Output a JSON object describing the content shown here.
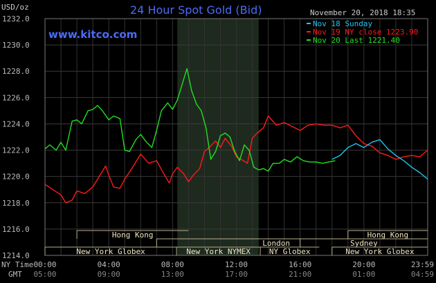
{
  "chart_data": {
    "type": "line",
    "title": "24 Hour Spot Gold (Bid)",
    "site": "www.kitco.com",
    "ylabel": "USD/oz",
    "date": "November 20, 2018 18:35",
    "ylim": [
      1214.0,
      1232.0
    ],
    "yticks": [
      "1232.0",
      "1230.0",
      "1228.0",
      "1226.0",
      "1224.0",
      "1222.0",
      "1220.0",
      "1218.0",
      "1216.0",
      "1214.0"
    ],
    "xlim": [
      0,
      24
    ],
    "x_row1_label": "NY Time",
    "x_row2_label": "GMT",
    "xticks_ny": [
      "00:00",
      "04:00",
      "08:00",
      "12:00",
      "16:00",
      "20:00",
      "23:59"
    ],
    "xticks_gmt": [
      "05:00",
      "09:00",
      "13:00",
      "17:00",
      "21:00",
      "01:00",
      "04:59"
    ],
    "grid": true,
    "legend_position": "top-right",
    "shaded_region_hours": [
      8.3,
      13.4
    ],
    "sessions": [
      {
        "label": "Hong Kong",
        "start": 2.0,
        "end": 9.0,
        "row": 1
      },
      {
        "label": "Hong Kong",
        "start": 19.0,
        "end": 24.0,
        "row": 1
      },
      {
        "label": "London",
        "start": 7.0,
        "end": 22.0,
        "row": 2
      },
      {
        "label": "Sydney",
        "start": 16.0,
        "end": 24.0,
        "row": 2
      },
      {
        "label": "New York Globex",
        "start": 0.0,
        "end": 8.25,
        "row": 3
      },
      {
        "label": "New York NYMEX",
        "start": 8.25,
        "end": 13.5,
        "row": 3
      },
      {
        "label": "NY Globex",
        "start": 13.5,
        "end": 17.2,
        "row": 3
      },
      {
        "label": "New York Globex",
        "start": 18.0,
        "end": 24.0,
        "row": 3
      }
    ],
    "series": [
      {
        "name": "Nov 18 Sunday",
        "color": "#22c4f0",
        "x": [
          18.0,
          18.5,
          19.0,
          19.5,
          20.0,
          20.5,
          21.0,
          21.5,
          22.0,
          22.5,
          23.0,
          23.5,
          23.99
        ],
        "y": [
          1221.3,
          1221.6,
          1222.2,
          1222.5,
          1222.2,
          1222.6,
          1222.8,
          1222.1,
          1221.6,
          1221.2,
          1220.7,
          1220.3,
          1219.8
        ]
      },
      {
        "name": "Nov 19 NY close 1223.90",
        "color": "#ff1a1a",
        "x": [
          0.0,
          0.5,
          1.0,
          1.3,
          1.7,
          2.0,
          2.5,
          3.0,
          3.5,
          3.8,
          4.0,
          4.3,
          4.7,
          5.0,
          5.5,
          6.0,
          6.5,
          7.0,
          7.5,
          7.8,
          8.0,
          8.3,
          8.7,
          9.0,
          9.3,
          9.7,
          10.0,
          10.3,
          10.7,
          11.0,
          11.3,
          11.7,
          12.0,
          12.3,
          12.7,
          13.0,
          13.3,
          13.7,
          14.0,
          14.5,
          15.0,
          15.5,
          16.0,
          16.5,
          17.0,
          17.5,
          18.0,
          18.5,
          19.0,
          19.5,
          20.0,
          20.5,
          21.0,
          21.5,
          22.0,
          22.5,
          23.0,
          23.5,
          23.99
        ],
        "y": [
          1219.4,
          1219.0,
          1218.6,
          1218.0,
          1218.2,
          1218.9,
          1218.7,
          1219.2,
          1220.2,
          1220.8,
          1220.1,
          1219.2,
          1219.1,
          1219.8,
          1220.7,
          1221.7,
          1221.0,
          1221.2,
          1220.1,
          1219.5,
          1220.2,
          1220.7,
          1220.2,
          1219.6,
          1220.1,
          1220.6,
          1221.9,
          1222.2,
          1222.7,
          1222.2,
          1222.9,
          1222.3,
          1221.5,
          1221.3,
          1221.0,
          1222.9,
          1223.3,
          1223.7,
          1224.6,
          1223.9,
          1224.1,
          1223.8,
          1223.5,
          1223.9,
          1224.0,
          1223.9,
          1223.9,
          1223.7,
          1223.9,
          1223.1,
          1222.5,
          1222.3,
          1221.8,
          1221.6,
          1221.3,
          1221.5,
          1221.6,
          1221.5,
          1222.0
        ]
      },
      {
        "name": "Nov 20 Last 1221.40",
        "color": "#22e022",
        "x": [
          0.0,
          0.3,
          0.7,
          1.0,
          1.3,
          1.7,
          2.0,
          2.3,
          2.7,
          3.0,
          3.3,
          3.6,
          4.0,
          4.3,
          4.7,
          5.0,
          5.3,
          5.7,
          6.0,
          6.3,
          6.7,
          7.0,
          7.3,
          7.7,
          8.0,
          8.3,
          8.6,
          8.9,
          9.2,
          9.5,
          9.8,
          10.1,
          10.4,
          10.7,
          11.0,
          11.3,
          11.6,
          11.9,
          12.2,
          12.5,
          12.8,
          13.1,
          13.4,
          13.7,
          14.0,
          14.3,
          14.7,
          15.0,
          15.4,
          15.8,
          16.2,
          16.6,
          17.0,
          17.4,
          17.8,
          18.2
        ],
        "y": [
          1222.1,
          1222.4,
          1222.0,
          1222.6,
          1222.0,
          1224.2,
          1224.3,
          1224.0,
          1225.0,
          1225.1,
          1225.4,
          1225.0,
          1224.3,
          1224.6,
          1224.4,
          1222.0,
          1221.9,
          1222.8,
          1223.2,
          1222.7,
          1222.2,
          1223.5,
          1225.0,
          1225.6,
          1225.1,
          1225.8,
          1227.0,
          1228.2,
          1226.5,
          1225.5,
          1225.0,
          1223.7,
          1221.3,
          1221.9,
          1223.1,
          1223.3,
          1223.0,
          1221.9,
          1221.2,
          1222.4,
          1222.0,
          1220.7,
          1220.5,
          1220.6,
          1220.4,
          1221.0,
          1221.0,
          1221.3,
          1221.1,
          1221.5,
          1221.2,
          1221.1,
          1221.1,
          1221.0,
          1221.1,
          1221.2
        ]
      }
    ]
  }
}
